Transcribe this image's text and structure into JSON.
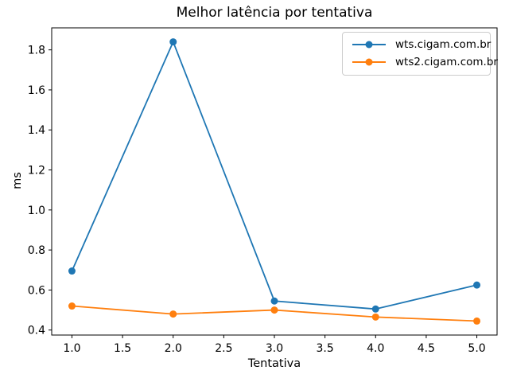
{
  "figure": {
    "title": "Melhor latência por tentativa",
    "background_color": "#ffffff",
    "text_color": "#000000"
  },
  "legend": {
    "position": "upper right",
    "border_color": "#cccccc",
    "entries": [
      {
        "label": "wts.cigam.com.br",
        "color": "#1f77b4"
      },
      {
        "label": "wts2.cigam.com.br",
        "color": "#ff7f0e"
      }
    ]
  },
  "chart_data": {
    "type": "line",
    "title": "Melhor latência por tentativa",
    "xlabel": "Tentativa",
    "ylabel": "ms",
    "x": [
      1,
      2,
      3,
      4,
      5
    ],
    "series": [
      {
        "name": "wts.cigam.com.br",
        "color": "#1f77b4",
        "marker": "o",
        "values": [
          0.695,
          1.84,
          0.545,
          0.505,
          0.625
        ]
      },
      {
        "name": "wts2.cigam.com.br",
        "color": "#ff7f0e",
        "marker": "o",
        "values": [
          0.52,
          0.48,
          0.5,
          0.465,
          0.445
        ]
      }
    ],
    "xlim": [
      0.8,
      5.2
    ],
    "ylim": [
      0.375,
      1.91
    ],
    "xticks": [
      1.0,
      1.5,
      2.0,
      2.5,
      3.0,
      3.5,
      4.0,
      4.5,
      5.0
    ],
    "xtick_labels": [
      "1.0",
      "1.5",
      "2.0",
      "2.5",
      "3.0",
      "3.5",
      "4.0",
      "4.5",
      "5.0"
    ],
    "yticks": [
      0.4,
      0.6,
      0.8,
      1.0,
      1.2,
      1.4,
      1.6,
      1.8
    ],
    "ytick_labels": [
      "0.4",
      "0.6",
      "0.8",
      "1.0",
      "1.2",
      "1.4",
      "1.6",
      "1.8"
    ],
    "grid": false,
    "legend_position": "upper right"
  }
}
